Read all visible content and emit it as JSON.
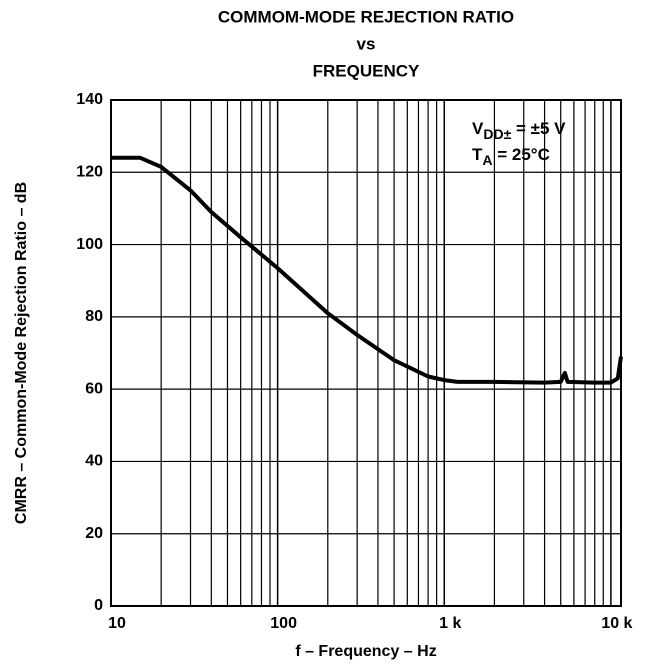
{
  "chart_data": {
    "type": "line",
    "title_lines": [
      "COMMOM-MODE REJECTION RATIO",
      "vs",
      "FREQUENCY"
    ],
    "xlabel": "f – Frequency – Hz",
    "ylabel": "CMRR – Common-Mode Rejection Ratio – dB",
    "annotations": [
      {
        "main": "V",
        "sub": "DD±",
        "rest": " = ±5 V"
      },
      {
        "main": "T",
        "sub": "A",
        "rest": " = 25°C"
      }
    ],
    "x_log": true,
    "grid": true,
    "xlim": [
      10,
      11500
    ],
    "ylim": [
      0,
      140
    ],
    "xticks": [
      10,
      100,
      {
        "value": 1000,
        "label": "1 k"
      },
      {
        "value": 10000,
        "label": "10 k"
      }
    ],
    "xminor_ticks": [
      20,
      30,
      40,
      50,
      60,
      70,
      80,
      90,
      200,
      300,
      400,
      500,
      600,
      700,
      800,
      900,
      2000,
      3000,
      4000,
      5000,
      6000,
      7000,
      8000,
      9000
    ],
    "yticks": [
      0,
      20,
      40,
      60,
      80,
      100,
      120,
      140
    ],
    "series": [
      {
        "color": "#000000",
        "x": [
          10,
          15,
          20,
          30,
          40,
          60,
          100,
          200,
          300,
          500,
          800,
          1000,
          1200,
          2000,
          4000,
          5000,
          5300,
          5500,
          8000,
          10000,
          11000,
          11500
        ],
        "values": [
          124,
          124,
          121.5,
          115,
          109,
          102,
          93.5,
          81,
          75,
          68,
          63.5,
          62.5,
          62,
          62,
          61.8,
          62,
          64.5,
          62,
          61.8,
          61.8,
          63,
          69
        ]
      }
    ]
  }
}
